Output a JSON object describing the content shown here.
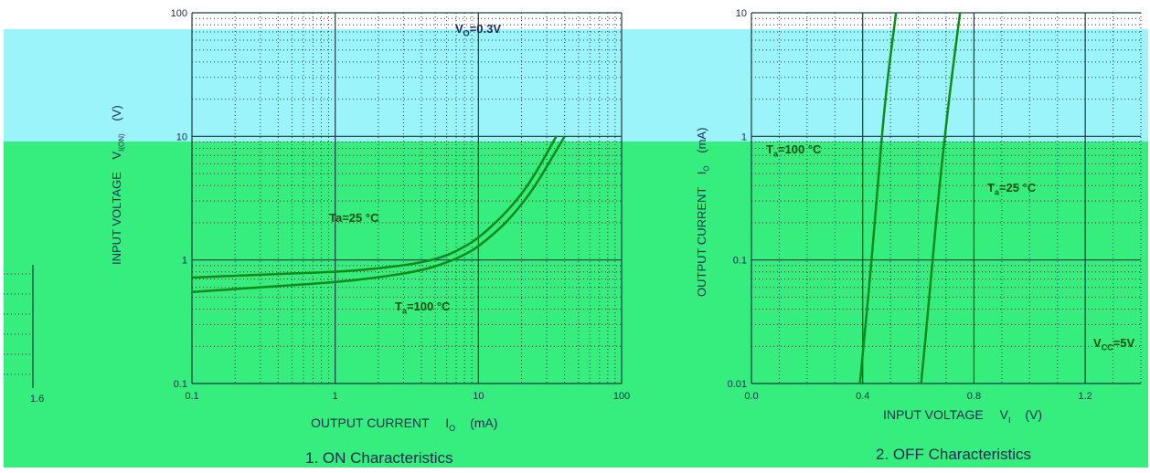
{
  "colors": {
    "band_top": "#9af4f9",
    "band_bottom": "#35ee7e",
    "grid": "#2a3a4a",
    "curve_top": "#16305a",
    "curve_bottom": "#108a18"
  },
  "chart_data": [
    {
      "type": "line",
      "scale": "log-log",
      "title": "1. ON Characteristics",
      "xlabel": "OUTPUT CURRENT",
      "xlabel_symbol": "I",
      "xlabel_sub": "O",
      "xlabel_unit": "(mA)",
      "ylabel": "INPUT VOLTAGE",
      "ylabel_symbol": "V",
      "ylabel_sub": "I(ON)",
      "ylabel_unit": "(V)",
      "xlim": [
        0.1,
        100
      ],
      "ylim": [
        0.1,
        100
      ],
      "x_ticks": [
        "0.1",
        "1",
        "10",
        "100"
      ],
      "y_ticks": [
        "0.1",
        "1",
        "10",
        "100"
      ],
      "grid": true,
      "annotations": [
        {
          "text": "V",
          "sub": "O",
          "rest": "=0.3V"
        },
        {
          "text": "Ta=25 °C",
          "sub": "",
          "rest": ""
        },
        {
          "text": "T",
          "sub": "a",
          "rest": "=100 °C"
        }
      ],
      "series": [
        {
          "x": [
            0.1,
            0.3,
            1,
            2,
            4,
            6,
            8,
            10,
            15,
            20,
            25,
            30,
            35
          ],
          "y": [
            0.72,
            0.76,
            0.8,
            0.85,
            0.95,
            1.08,
            1.28,
            1.5,
            2.3,
            3.4,
            5.0,
            7.3,
            10.0
          ]
        },
        {
          "x": [
            0.1,
            0.3,
            1,
            2,
            4,
            6,
            8,
            10,
            15,
            20,
            25,
            30,
            40
          ],
          "y": [
            0.55,
            0.6,
            0.66,
            0.72,
            0.82,
            0.95,
            1.1,
            1.28,
            1.9,
            2.8,
            4.0,
            5.7,
            10.0
          ]
        }
      ],
      "side_tick": "1.6"
    },
    {
      "type": "line",
      "scale": "log-y",
      "title": "2. OFF Characteristics",
      "xlabel": "INPUT VOLTAGE",
      "xlabel_symbol": "V",
      "xlabel_sub": "I",
      "xlabel_unit": "(V)",
      "ylabel": "OUTPUT CURRENT",
      "ylabel_symbol": "I",
      "ylabel_sub": "O",
      "ylabel_unit": "(mA)",
      "xlim": [
        0.0,
        1.4
      ],
      "ylim": [
        0.01,
        10
      ],
      "x_ticks": [
        "0.0",
        "0.4",
        "0.8",
        "1.2"
      ],
      "y_ticks": [
        "0.01",
        "0.1",
        "1",
        "10"
      ],
      "grid": true,
      "annotations": [
        {
          "text": "T",
          "sub": "a",
          "rest": "=100 °C"
        },
        {
          "text": "T",
          "sub": "a",
          "rest": "=25 °C"
        },
        {
          "text": "V",
          "sub": "CC",
          "rest": "=5V"
        }
      ],
      "series": [
        {
          "x": [
            0.39,
            0.42,
            0.45,
            0.48,
            0.52
          ],
          "y": [
            0.01,
            0.05,
            0.3,
            2.0,
            10.0
          ]
        },
        {
          "x": [
            0.61,
            0.64,
            0.67,
            0.71,
            0.75
          ],
          "y": [
            0.01,
            0.05,
            0.3,
            2.0,
            10.0
          ]
        }
      ]
    }
  ]
}
